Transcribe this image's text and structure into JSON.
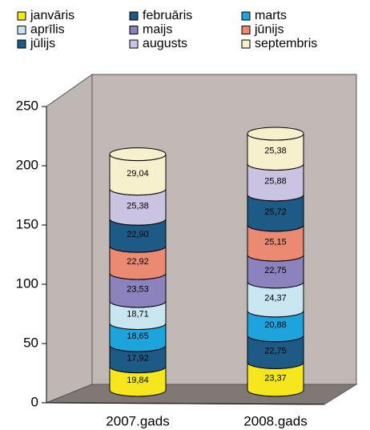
{
  "chart_data": {
    "type": "bar",
    "stacked": true,
    "categories": [
      "2007.gads",
      "2008.gads"
    ],
    "series": [
      {
        "name": "janvāris",
        "color": "#f5e61e",
        "values": [
          19.84,
          23.37
        ],
        "value_labels": [
          "19,84",
          "23,37"
        ]
      },
      {
        "name": "februāris",
        "color": "#1d5a86",
        "values": [
          17.92,
          22.75
        ],
        "value_labels": [
          "17,92",
          "22,75"
        ]
      },
      {
        "name": "marts",
        "color": "#1ea4dc",
        "values": [
          18.65,
          20.88
        ],
        "value_labels": [
          "18,65",
          "20,88"
        ]
      },
      {
        "name": "aprīlis",
        "color": "#c9e6f0",
        "values": [
          18.71,
          24.37
        ],
        "value_labels": [
          "18,71",
          "24,37"
        ]
      },
      {
        "name": "maijs",
        "color": "#8c82be",
        "values": [
          23.53,
          22.75
        ],
        "value_labels": [
          "23,53",
          "22,75"
        ]
      },
      {
        "name": "jūnijs",
        "color": "#ea8a72",
        "values": [
          22.92,
          25.15
        ],
        "value_labels": [
          "22,92",
          "25,15"
        ]
      },
      {
        "name": "jūlijs",
        "color": "#1d5a86",
        "values": [
          22.9,
          25.72
        ],
        "value_labels": [
          "22,90",
          "25,72"
        ]
      },
      {
        "name": "augusts",
        "color": "#cbc3e2",
        "values": [
          25.38,
          25.88
        ],
        "value_labels": [
          "25,38",
          "25,88"
        ]
      },
      {
        "name": "septembris",
        "color": "#f6f0cc",
        "values": [
          29.04,
          25.38
        ],
        "value_labels": [
          "29,04",
          "25,38"
        ]
      }
    ],
    "ylim": [
      0,
      250
    ],
    "yticks": [
      0,
      50,
      100,
      150,
      200,
      250
    ],
    "grid": false
  }
}
